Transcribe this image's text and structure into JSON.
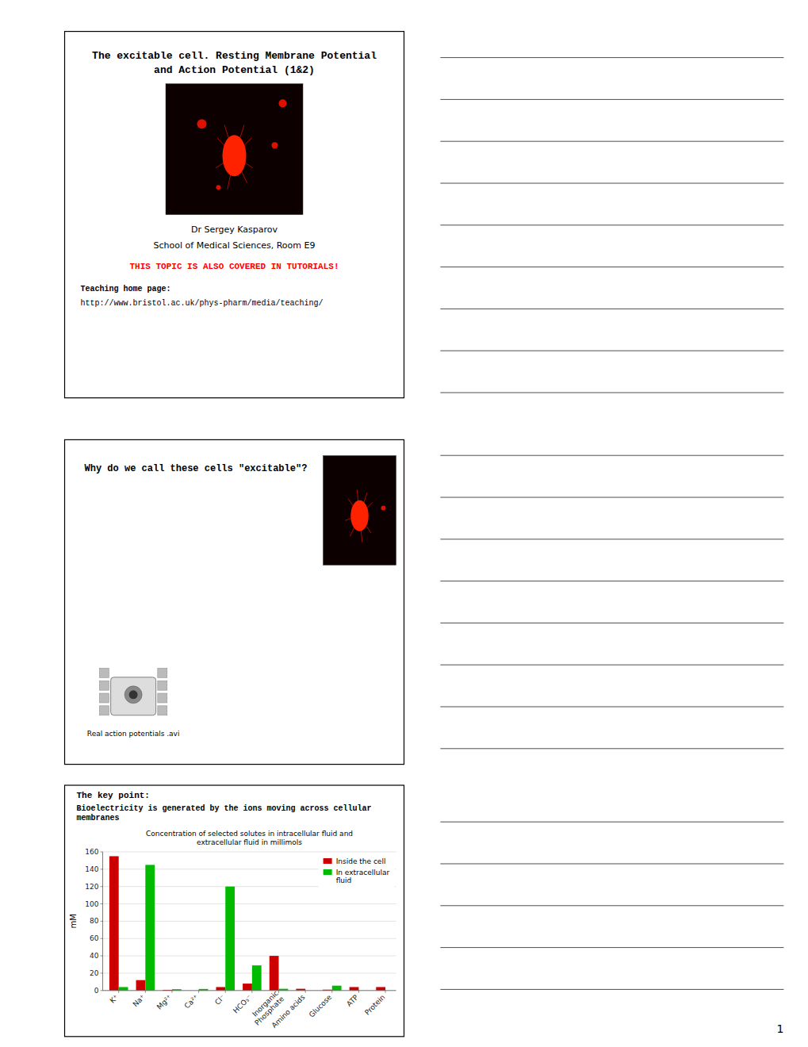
{
  "chart_data": {
    "type": "bar",
    "title": "Concentration of selected solutes in intracellular fluid and\nextracellular fluid in millimols",
    "ylabel": "mM",
    "categories": [
      "K⁺",
      "Na⁺",
      "Mg²⁺",
      "Ca²⁺",
      "Cl⁻",
      "HCO₃⁻",
      "Inorganic\nPhosphate",
      "Amino acids",
      "Glucose",
      "ATP",
      "Protein"
    ],
    "series": [
      {
        "name": "Inside the cell",
        "color": "#cc0000",
        "values": [
          155,
          12,
          0.8,
          0.0001,
          4,
          8,
          40,
          2,
          1,
          4,
          4
        ]
      },
      {
        "name": "In extracellular\nfluid",
        "color": "#00bb00",
        "values": [
          4,
          145,
          1.5,
          1.8,
          120,
          29,
          2,
          0,
          5.6,
          0,
          0
        ]
      }
    ],
    "ylim": [
      0,
      160
    ],
    "yticks": [
      0,
      20,
      40,
      60,
      80,
      100,
      120,
      140,
      160
    ],
    "grid": true,
    "legend": "upper right",
    "annotations": [
      "The excitable cell. Resting Membrane Potential",
      "and Action Potential (1&2)",
      "Dr Sergey Kasparov",
      "School of Medical Sciences, Room E9",
      {
        "text": "THIS TOPIC IS ALSO COVERED IN TUTORIALS!",
        "color": "#ff0000"
      },
      "Teaching home page:",
      "http://www.bristol.ac.uk/phys-pharm/media/teaching/",
      "Why do we call these cells \"excitable\"?",
      "Real action potentials .avi",
      "The key point:",
      "Bioelectricity is generated by the ions moving across cellular\nmembranes",
      "1"
    ]
  }
}
